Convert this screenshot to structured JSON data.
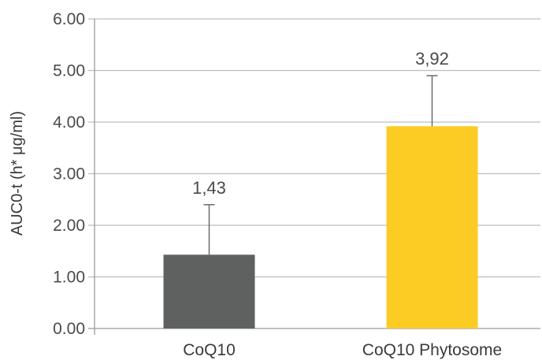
{
  "chart_data": {
    "type": "bar",
    "title": "",
    "xlabel": "",
    "ylabel": "AUC0-t (h* μg/ml)",
    "ylim": [
      0,
      6
    ],
    "y_ticks": [
      "0.00",
      "1.00",
      "2.00",
      "3.00",
      "4.00",
      "5.00",
      "6.00"
    ],
    "grid": true,
    "categories": [
      "CoQ10",
      "CoQ10 Phytosome"
    ],
    "values": [
      1.43,
      3.92
    ],
    "error_upper": [
      2.4,
      4.9
    ],
    "data_labels": [
      "1,43",
      "3,92"
    ],
    "bar_colors": [
      "#5f6161",
      "#fccb24"
    ],
    "colors": {
      "grid": "#bdbdbd",
      "axis": "#9a9a9a",
      "error_bar": "#6b6b6b"
    }
  }
}
